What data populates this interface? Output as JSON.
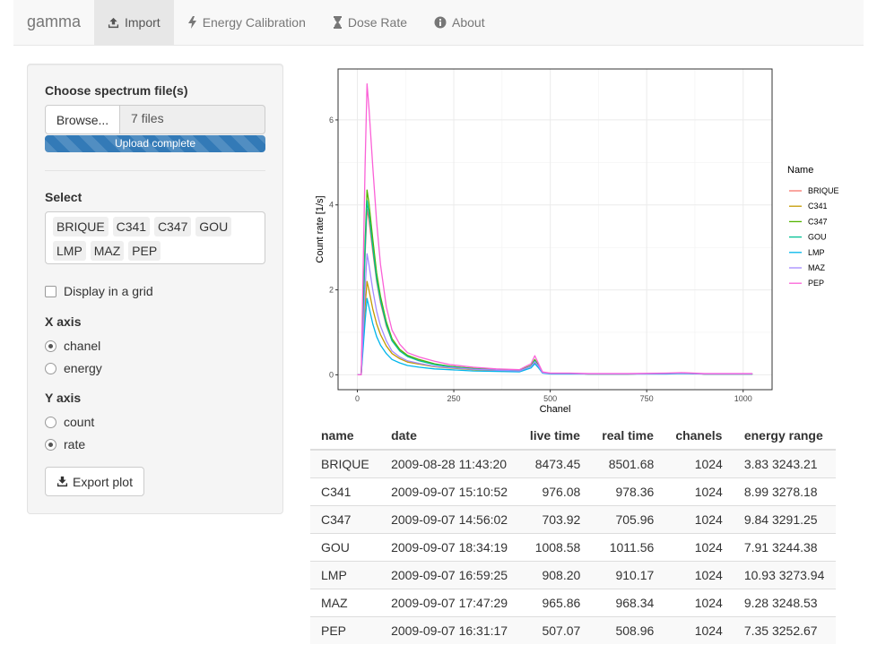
{
  "app": {
    "brand": "gamma"
  },
  "nav": {
    "items": [
      {
        "label": "Import",
        "icon": "upload-icon",
        "active": true
      },
      {
        "label": "Energy Calibration",
        "icon": "bolt-icon",
        "active": false
      },
      {
        "label": "Dose Rate",
        "icon": "hourglass-icon",
        "active": false
      },
      {
        "label": "About",
        "icon": "info-icon",
        "active": false
      }
    ]
  },
  "sidebar": {
    "file_label": "Choose spectrum file(s)",
    "browse_label": "Browse...",
    "file_status": "7 files",
    "upload_status": "Upload complete",
    "upload_progress": 1.0,
    "select_label": "Select",
    "selected": [
      "BRIQUE",
      "C341",
      "C347",
      "GOU",
      "LMP",
      "MAZ",
      "PEP"
    ],
    "grid_label": "Display in a grid",
    "grid_checked": false,
    "x_axis_label": "X axis",
    "x_options": [
      {
        "label": "chanel",
        "checked": true
      },
      {
        "label": "energy",
        "checked": false
      }
    ],
    "y_axis_label": "Y axis",
    "y_options": [
      {
        "label": "count",
        "checked": false
      },
      {
        "label": "rate",
        "checked": true
      }
    ],
    "export_label": "Export plot"
  },
  "chart_data": {
    "type": "line",
    "xlabel": "Chanel",
    "ylabel": "Count rate [1/s]",
    "xlim": [
      -50,
      1075
    ],
    "ylim": [
      -0.35,
      7.2
    ],
    "xticks": [
      0,
      250,
      500,
      750,
      1000
    ],
    "yticks": [
      0,
      2,
      4,
      6
    ],
    "grid": true,
    "legend_title": "Name",
    "legend_position": "right",
    "x": [
      0,
      10,
      20,
      25,
      30,
      40,
      50,
      60,
      75,
      90,
      110,
      130,
      160,
      200,
      240,
      300,
      360,
      420,
      450,
      460,
      470,
      480,
      500,
      550,
      600,
      700,
      800,
      840,
      900,
      1000,
      1024
    ],
    "series": [
      {
        "name": "BRIQUE",
        "color": "#F8766D",
        "values": [
          0,
          0,
          2.8,
          3.9,
          3.65,
          2.9,
          2.2,
          1.7,
          1.15,
          0.8,
          0.58,
          0.45,
          0.35,
          0.25,
          0.2,
          0.15,
          0.12,
          0.1,
          0.22,
          0.34,
          0.22,
          0.06,
          0.03,
          0.03,
          0.02,
          0.02,
          0.03,
          0.04,
          0.02,
          0.02,
          0.02
        ]
      },
      {
        "name": "C341",
        "color": "#C49A00",
        "values": [
          0,
          0,
          1.6,
          2.2,
          2.0,
          1.55,
          1.2,
          0.95,
          0.68,
          0.5,
          0.38,
          0.3,
          0.25,
          0.19,
          0.16,
          0.12,
          0.1,
          0.09,
          0.2,
          0.3,
          0.2,
          0.05,
          0.03,
          0.03,
          0.02,
          0.02,
          0.03,
          0.04,
          0.02,
          0.02,
          0.02
        ]
      },
      {
        "name": "C347",
        "color": "#53B400",
        "values": [
          0,
          0,
          3.1,
          4.35,
          4.05,
          3.2,
          2.4,
          1.85,
          1.25,
          0.85,
          0.6,
          0.46,
          0.36,
          0.26,
          0.2,
          0.15,
          0.12,
          0.1,
          0.22,
          0.36,
          0.22,
          0.06,
          0.03,
          0.03,
          0.02,
          0.02,
          0.03,
          0.04,
          0.02,
          0.02,
          0.02
        ]
      },
      {
        "name": "GOU",
        "color": "#00C094",
        "values": [
          0,
          0,
          2.9,
          4.1,
          3.8,
          3.0,
          2.25,
          1.75,
          1.18,
          0.8,
          0.56,
          0.43,
          0.33,
          0.24,
          0.19,
          0.14,
          0.11,
          0.09,
          0.2,
          0.33,
          0.2,
          0.05,
          0.03,
          0.03,
          0.02,
          0.02,
          0.03,
          0.04,
          0.02,
          0.02,
          0.02
        ]
      },
      {
        "name": "LMP",
        "color": "#00B6EB",
        "values": [
          0,
          0,
          1.25,
          1.8,
          1.6,
          1.2,
          0.9,
          0.7,
          0.5,
          0.36,
          0.28,
          0.22,
          0.18,
          0.14,
          0.12,
          0.09,
          0.08,
          0.07,
          0.16,
          0.26,
          0.16,
          0.04,
          0.02,
          0.02,
          0.02,
          0.02,
          0.02,
          0.03,
          0.02,
          0.02,
          0.02
        ]
      },
      {
        "name": "MAZ",
        "color": "#A58AFF",
        "values": [
          0,
          0,
          2.0,
          2.85,
          2.6,
          2.0,
          1.5,
          1.15,
          0.8,
          0.56,
          0.42,
          0.33,
          0.27,
          0.2,
          0.17,
          0.13,
          0.11,
          0.09,
          0.2,
          0.31,
          0.2,
          0.05,
          0.03,
          0.03,
          0.02,
          0.02,
          0.03,
          0.04,
          0.02,
          0.02,
          0.02
        ]
      },
      {
        "name": "PEP",
        "color": "#FB61D7",
        "values": [
          0,
          0,
          4.9,
          6.85,
          6.3,
          4.9,
          3.6,
          2.6,
          1.6,
          1.05,
          0.72,
          0.52,
          0.42,
          0.32,
          0.24,
          0.18,
          0.14,
          0.12,
          0.26,
          0.45,
          0.26,
          0.07,
          0.04,
          0.04,
          0.03,
          0.03,
          0.04,
          0.05,
          0.03,
          0.03,
          0.03
        ]
      }
    ]
  },
  "table": {
    "columns": [
      "name",
      "date",
      "live time",
      "real time",
      "chanels",
      "energy range"
    ],
    "rows": [
      [
        "BRIQUE",
        "2009-08-28 11:43:20",
        "8473.45",
        "8501.68",
        "1024",
        "3.83 3243.21"
      ],
      [
        "C341",
        "2009-09-07 15:10:52",
        "976.08",
        "978.36",
        "1024",
        "8.99 3278.18"
      ],
      [
        "C347",
        "2009-09-07 14:56:02",
        "703.92",
        "705.96",
        "1024",
        "9.84 3291.25"
      ],
      [
        "GOU",
        "2009-09-07 18:34:19",
        "1008.58",
        "1011.56",
        "1024",
        "7.91 3244.38"
      ],
      [
        "LMP",
        "2009-09-07 16:59:25",
        "908.20",
        "910.17",
        "1024",
        "10.93 3273.94"
      ],
      [
        "MAZ",
        "2009-09-07 17:47:29",
        "965.86",
        "968.34",
        "1024",
        "9.28 3248.53"
      ],
      [
        "PEP",
        "2009-09-07 16:31:17",
        "507.07",
        "508.96",
        "1024",
        "7.35 3252.67"
      ]
    ]
  }
}
